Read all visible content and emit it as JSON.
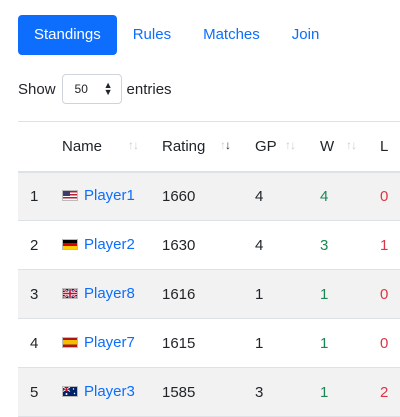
{
  "tabs": [
    {
      "label": "Standings",
      "active": true
    },
    {
      "label": "Rules",
      "active": false
    },
    {
      "label": "Matches",
      "active": false
    },
    {
      "label": "Join",
      "active": false
    }
  ],
  "length_control": {
    "show_label": "Show",
    "selected": "50",
    "entries_label": "entries"
  },
  "table": {
    "columns": [
      "",
      "Name",
      "Rating",
      "GP",
      "W",
      "L"
    ],
    "sorted_column": "Rating",
    "sort_direction": "descending",
    "rows": [
      {
        "rank": "1",
        "name": "Player1",
        "flag": "us-flag",
        "rating": "1660",
        "gp": "4",
        "w": "4",
        "l": "0"
      },
      {
        "rank": "2",
        "name": "Player2",
        "flag": "germany-flag",
        "rating": "1630",
        "gp": "4",
        "w": "3",
        "l": "1"
      },
      {
        "rank": "3",
        "name": "Player8",
        "flag": "uk-flag",
        "rating": "1616",
        "gp": "1",
        "w": "1",
        "l": "0"
      },
      {
        "rank": "4",
        "name": "Player7",
        "flag": "spain-flag",
        "rating": "1615",
        "gp": "1",
        "w": "1",
        "l": "0"
      },
      {
        "rank": "5",
        "name": "Player3",
        "flag": "australia-flag",
        "rating": "1585",
        "gp": "3",
        "w": "1",
        "l": "2"
      }
    ]
  },
  "colors": {
    "accent": "#0d6efd",
    "win": "#198754",
    "loss": "#dc3545",
    "stripe": "#f2f2f2"
  }
}
